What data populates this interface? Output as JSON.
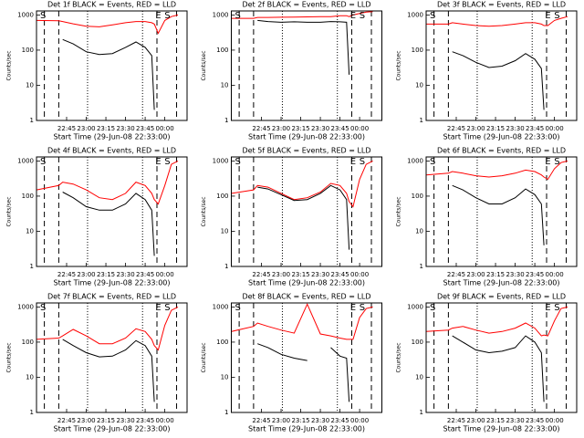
{
  "chart_data": [
    {
      "type": "line",
      "title": "Det 1f BLACK = Events, RED = LLD",
      "ylabel": "Counts/sec",
      "xlabel": "Start Time (29-Jun-08 22:33:00)",
      "log_y": true,
      "ylim": [
        1,
        1300
      ],
      "yticks": [
        1,
        10,
        100,
        1000
      ],
      "xlim": [
        "22:22",
        "00:17"
      ],
      "xticks": [
        "22:45",
        "23:00",
        "23:15",
        "23:30",
        "23:45",
        "00:00"
      ],
      "x": [
        "22:22",
        "22:39",
        "22:42",
        "22:50",
        "23:00",
        "23:10",
        "23:20",
        "23:30",
        "23:38",
        "23:45",
        "23:50",
        "23:52",
        "23:55",
        "00:00",
        "00:05",
        "00:10"
      ],
      "series": [
        {
          "color": "#ff0000",
          "values": [
            700,
            680,
            650,
            560,
            480,
            460,
            520,
            600,
            650,
            650,
            600,
            550,
            300,
            700,
            900,
            1000
          ]
        },
        {
          "color": "#000000",
          "values": [
            null,
            null,
            200,
            150,
            90,
            75,
            80,
            120,
            170,
            120,
            70,
            2,
            null,
            null,
            null,
            null
          ]
        }
      ],
      "dashed_lines": [
        "22:28",
        "22:39",
        "23:54",
        "00:09"
      ],
      "dotted_lines": [
        "23:01",
        "23:43"
      ],
      "annotations": [
        {
          "text": "S",
          "x": "22:27"
        },
        {
          "text": "E",
          "x": "23:55"
        },
        {
          "text": "S",
          "x": "00:02"
        }
      ]
    },
    {
      "type": "line",
      "title": "Det 2f BLACK = Events, RED = LLD",
      "ylabel": "Counts/sec",
      "xlabel": "Start Time (29-Jun-08 22:33:00)",
      "log_y": true,
      "ylim": [
        1,
        1300
      ],
      "yticks": [
        1,
        10,
        100,
        1000
      ],
      "xlim": [
        "22:22",
        "00:17"
      ],
      "xticks": [
        "22:45",
        "23:00",
        "23:15",
        "23:30",
        "23:45",
        "00:00"
      ],
      "x": [
        "22:22",
        "22:39",
        "22:42",
        "22:50",
        "23:00",
        "23:10",
        "23:20",
        "23:30",
        "23:38",
        "23:45",
        "23:50",
        "23:52",
        "23:55",
        "00:00",
        "00:05",
        "00:10"
      ],
      "series": [
        {
          "color": "#ff0000",
          "values": [
            800,
            800,
            850,
            850,
            860,
            870,
            880,
            900,
            900,
            950,
            950,
            900,
            1000,
            1100,
            1200,
            1250
          ]
        },
        {
          "color": "#000000",
          "values": [
            null,
            null,
            700,
            650,
            620,
            640,
            620,
            620,
            650,
            640,
            620,
            20,
            null,
            null,
            null,
            null
          ]
        }
      ],
      "dashed_lines": [
        "22:28",
        "22:39",
        "23:54",
        "00:09"
      ],
      "dotted_lines": [
        "23:01",
        "23:43"
      ],
      "annotations": [
        {
          "text": "S",
          "x": "22:27"
        },
        {
          "text": "E",
          "x": "23:55"
        },
        {
          "text": "S",
          "x": "00:02"
        }
      ]
    },
    {
      "type": "line",
      "title": "Det 3f BLACK = Events, RED = LLD",
      "ylabel": "Counts/sec",
      "xlabel": "Start Time (29-Jun-08 22:33:00)",
      "log_y": true,
      "ylim": [
        1,
        1300
      ],
      "yticks": [
        1,
        10,
        100,
        1000
      ],
      "xlim": [
        "22:22",
        "00:17"
      ],
      "xticks": [
        "22:45",
        "23:00",
        "23:15",
        "23:30",
        "23:45",
        "00:00"
      ],
      "x": [
        "22:22",
        "22:39",
        "22:42",
        "22:50",
        "23:00",
        "23:10",
        "23:20",
        "23:30",
        "23:38",
        "23:45",
        "23:50",
        "23:52",
        "23:55",
        "00:00",
        "00:05",
        "00:10"
      ],
      "series": [
        {
          "color": "#ff0000",
          "values": [
            550,
            550,
            600,
            550,
            500,
            480,
            500,
            550,
            600,
            600,
            550,
            500,
            500,
            700,
            800,
            900
          ]
        },
        {
          "color": "#000000",
          "values": [
            null,
            null,
            90,
            70,
            45,
            32,
            35,
            50,
            80,
            55,
            30,
            2,
            null,
            null,
            null,
            null
          ]
        }
      ],
      "dashed_lines": [
        "22:28",
        "22:39",
        "23:54",
        "00:09"
      ],
      "dotted_lines": [
        "23:01",
        "23:43"
      ],
      "annotations": [
        {
          "text": "S",
          "x": "22:27"
        },
        {
          "text": "E",
          "x": "23:55"
        },
        {
          "text": "S",
          "x": "00:02"
        }
      ]
    },
    {
      "type": "line",
      "title": "Det 4f BLACK = Events, RED = LLD",
      "ylabel": "Counts/sec",
      "xlabel": "Start Time (29-Jun-08 22:33:00)",
      "log_y": true,
      "ylim": [
        1,
        1300
      ],
      "yticks": [
        1,
        10,
        100,
        1000
      ],
      "xlim": [
        "22:22",
        "00:17"
      ],
      "xticks": [
        "22:45",
        "23:00",
        "23:15",
        "23:30",
        "23:45",
        "00:00"
      ],
      "x": [
        "22:22",
        "22:39",
        "22:42",
        "22:50",
        "23:00",
        "23:10",
        "23:20",
        "23:30",
        "23:38",
        "23:45",
        "23:50",
        "23:52",
        "23:55",
        "00:00",
        "00:05",
        "00:10"
      ],
      "series": [
        {
          "color": "#ff0000",
          "values": [
            150,
            200,
            250,
            220,
            150,
            90,
            80,
            120,
            250,
            200,
            120,
            80,
            60,
            200,
            800,
            1000
          ]
        },
        {
          "color": "#000000",
          "values": [
            null,
            null,
            130,
            90,
            50,
            40,
            40,
            60,
            120,
            80,
            40,
            2,
            null,
            null,
            null,
            null
          ]
        }
      ],
      "dashed_lines": [
        "22:28",
        "22:39",
        "23:54",
        "00:09"
      ],
      "dotted_lines": [
        "23:01",
        "23:43"
      ],
      "annotations": [
        {
          "text": "S",
          "x": "22:27"
        },
        {
          "text": "E",
          "x": "23:55"
        },
        {
          "text": "S",
          "x": "00:02"
        }
      ]
    },
    {
      "type": "line",
      "title": "Det 5f BLACK = Events, RED = LLD",
      "ylabel": "Counts/sec",
      "xlabel": "Start Time (29-Jun-08 22:33:00)",
      "log_y": true,
      "ylim": [
        1,
        1300
      ],
      "yticks": [
        1,
        10,
        100,
        1000
      ],
      "xlim": [
        "22:22",
        "00:17"
      ],
      "xticks": [
        "22:45",
        "23:00",
        "23:15",
        "23:30",
        "23:45",
        "00:00"
      ],
      "x": [
        "22:22",
        "22:39",
        "22:42",
        "22:50",
        "23:00",
        "23:10",
        "23:20",
        "23:30",
        "23:38",
        "23:45",
        "23:50",
        "23:52",
        "23:55",
        "00:00",
        "00:05",
        "00:10"
      ],
      "series": [
        {
          "color": "#ff0000",
          "values": [
            120,
            150,
            200,
            180,
            120,
            80,
            90,
            130,
            230,
            200,
            120,
            70,
            50,
            300,
            800,
            1000
          ]
        },
        {
          "color": "#000000",
          "values": [
            null,
            null,
            180,
            160,
            110,
            75,
            80,
            120,
            200,
            150,
            80,
            3,
            null,
            null,
            null,
            null
          ]
        }
      ],
      "dashed_lines": [
        "22:28",
        "22:39",
        "23:54",
        "00:09"
      ],
      "dotted_lines": [
        "23:01",
        "23:43"
      ],
      "annotations": [
        {
          "text": "S",
          "x": "22:27"
        },
        {
          "text": "E",
          "x": "23:55"
        },
        {
          "text": "S",
          "x": "00:02"
        }
      ]
    },
    {
      "type": "line",
      "title": "Det 6f BLACK = Events, RED = LLD",
      "ylabel": "Counts/sec",
      "xlabel": "Start Time (29-Jun-08 22:33:00)",
      "log_y": true,
      "ylim": [
        1,
        1300
      ],
      "yticks": [
        1,
        10,
        100,
        1000
      ],
      "xlim": [
        "22:22",
        "00:17"
      ],
      "xticks": [
        "22:45",
        "23:00",
        "23:15",
        "23:30",
        "23:45",
        "00:00"
      ],
      "x": [
        "22:22",
        "22:39",
        "22:42",
        "22:50",
        "23:00",
        "23:10",
        "23:20",
        "23:30",
        "23:38",
        "23:45",
        "23:50",
        "23:52",
        "23:55",
        "00:00",
        "00:05",
        "00:10"
      ],
      "series": [
        {
          "color": "#ff0000",
          "values": [
            400,
            450,
            500,
            450,
            380,
            350,
            380,
            450,
            550,
            500,
            400,
            350,
            300,
            600,
            900,
            1000
          ]
        },
        {
          "color": "#000000",
          "values": [
            null,
            null,
            200,
            150,
            90,
            60,
            60,
            90,
            160,
            110,
            60,
            4,
            null,
            null,
            null,
            null
          ]
        }
      ],
      "dashed_lines": [
        "22:28",
        "22:39",
        "23:54",
        "00:09"
      ],
      "dotted_lines": [
        "23:01",
        "23:43"
      ],
      "annotations": [
        {
          "text": "S",
          "x": "22:27"
        },
        {
          "text": "E",
          "x": "23:55"
        },
        {
          "text": "S",
          "x": "00:02"
        }
      ]
    },
    {
      "type": "line",
      "title": "Det 7f BLACK = Events, RED = LLD",
      "ylabel": "Counts/sec",
      "xlabel": "Start Time (29-Jun-08 22:33:00)",
      "log_y": true,
      "ylim": [
        1,
        1300
      ],
      "yticks": [
        1,
        10,
        100,
        1000
      ],
      "xlim": [
        "22:22",
        "00:17"
      ],
      "xticks": [
        "22:45",
        "23:00",
        "23:15",
        "23:30",
        "23:45",
        "00:00"
      ],
      "x": [
        "22:22",
        "22:39",
        "22:42",
        "22:50",
        "23:00",
        "23:10",
        "23:20",
        "23:30",
        "23:38",
        "23:45",
        "23:50",
        "23:52",
        "23:55",
        "00:00",
        "00:05",
        "00:10"
      ],
      "series": [
        {
          "color": "#ff0000",
          "values": [
            120,
            130,
            150,
            230,
            150,
            90,
            90,
            130,
            240,
            200,
            120,
            80,
            60,
            300,
            800,
            1000
          ]
        },
        {
          "color": "#000000",
          "values": [
            null,
            null,
            120,
            80,
            50,
            38,
            40,
            60,
            110,
            80,
            40,
            2,
            null,
            null,
            null,
            null
          ]
        }
      ],
      "dashed_lines": [
        "22:28",
        "22:39",
        "23:54",
        "00:09"
      ],
      "dotted_lines": [
        "23:01",
        "23:43"
      ],
      "annotations": [
        {
          "text": "S",
          "x": "22:27"
        },
        {
          "text": "E",
          "x": "23:55"
        },
        {
          "text": "S",
          "x": "00:02"
        }
      ]
    },
    {
      "type": "line",
      "title": "Det 8f BLACK = Events, RED = LLD",
      "ylabel": "Counts/sec",
      "xlabel": "Start Time (29-Jun-08 22:33:00)",
      "log_y": true,
      "ylim": [
        1,
        1300
      ],
      "yticks": [
        1,
        10,
        100,
        1000
      ],
      "xlim": [
        "22:22",
        "00:17"
      ],
      "xticks": [
        "22:45",
        "23:00",
        "23:15",
        "23:30",
        "23:45",
        "00:00"
      ],
      "x": [
        "22:22",
        "22:39",
        "22:42",
        "22:50",
        "23:00",
        "23:10",
        "23:20",
        "23:30",
        "23:38",
        "23:45",
        "23:50",
        "23:52",
        "23:55",
        "00:00",
        "00:05",
        "00:10"
      ],
      "series": [
        {
          "color": "#ff0000",
          "values": [
            200,
            280,
            350,
            280,
            220,
            180,
            1200,
            170,
            150,
            130,
            120,
            120,
            120,
            500,
            900,
            1000
          ]
        },
        {
          "color": "#000000",
          "values": [
            null,
            null,
            90,
            70,
            45,
            35,
            30,
            null,
            70,
            40,
            35,
            2,
            null,
            null,
            null,
            null
          ]
        }
      ],
      "dashed_lines": [
        "22:28",
        "22:39",
        "23:54",
        "00:09"
      ],
      "dotted_lines": [
        "23:01",
        "23:43"
      ],
      "annotations": [
        {
          "text": "S",
          "x": "22:27"
        },
        {
          "text": "E",
          "x": "23:55"
        },
        {
          "text": "S",
          "x": "00:02"
        }
      ]
    },
    {
      "type": "line",
      "title": "Det 9f BLACK = Events, RED = LLD",
      "ylabel": "Counts/sec",
      "xlabel": "Start Time (29-Jun-08 22:33:00)",
      "log_y": true,
      "ylim": [
        1,
        1300
      ],
      "yticks": [
        1,
        10,
        100,
        1000
      ],
      "xlim": [
        "22:22",
        "00:17"
      ],
      "xticks": [
        "22:45",
        "23:00",
        "23:15",
        "23:30",
        "23:45",
        "00:00"
      ],
      "x": [
        "22:22",
        "22:39",
        "22:42",
        "22:50",
        "23:00",
        "23:10",
        "23:20",
        "23:30",
        "23:38",
        "23:45",
        "23:50",
        "23:52",
        "23:55",
        "00:00",
        "00:05",
        "00:10"
      ],
      "series": [
        {
          "color": "#ff0000",
          "values": [
            200,
            220,
            250,
            280,
            220,
            180,
            200,
            250,
            350,
            250,
            150,
            160,
            150,
            400,
            900,
            1000
          ]
        },
        {
          "color": "#000000",
          "values": [
            null,
            null,
            150,
            100,
            60,
            50,
            55,
            70,
            150,
            100,
            50,
            2,
            null,
            null,
            null,
            null
          ]
        }
      ],
      "dashed_lines": [
        "22:28",
        "22:39",
        "23:54",
        "00:09"
      ],
      "dotted_lines": [
        "23:01",
        "23:43"
      ],
      "annotations": [
        {
          "text": "S",
          "x": "22:27"
        },
        {
          "text": "E",
          "x": "23:55"
        },
        {
          "text": "S",
          "x": "00:02"
        }
      ]
    }
  ]
}
